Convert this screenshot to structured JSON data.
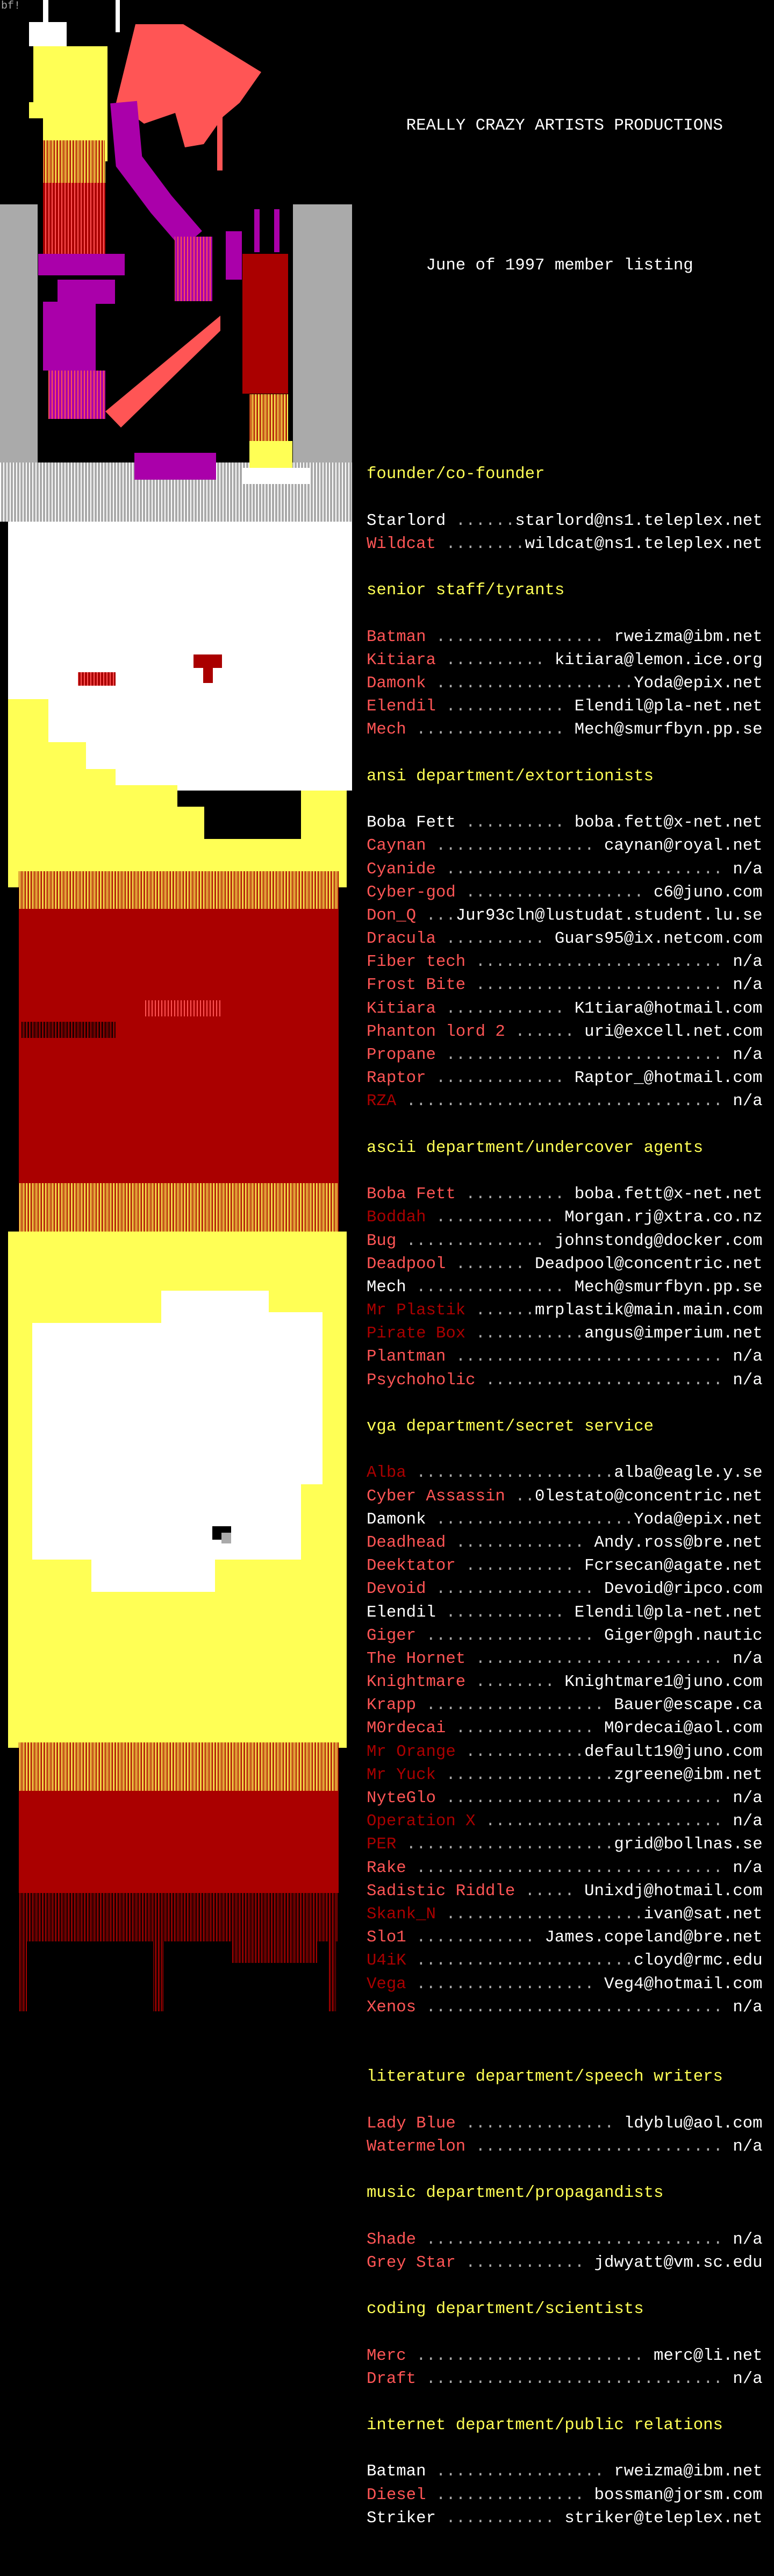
{
  "signature": "bf!",
  "header": {
    "title": "REALLY CRAZY ARTISTS PRODUCTIONS",
    "subtitle": "June of 1997 member listing"
  },
  "colors": {
    "heading": "#ffff55",
    "bright_red": "#ff5555",
    "dark_red": "#aa0000",
    "white": "#ffffff",
    "leader": "#aaaaaa",
    "yellow": "#ffff55",
    "magenta": "#aa00aa",
    "grey": "#aaaaaa"
  },
  "sections": [
    {
      "title": "founder/co-founder",
      "members": [
        {
          "name": "Starlord",
          "leader": " ...... ",
          "contact": "starlord@ns1.teleplex.net",
          "color": "#ffffff"
        },
        {
          "name": "Wildcat",
          "leader": " ........ ",
          "contact": "wildcat@ns1.teleplex.net",
          "color": "#ff5555"
        }
      ]
    },
    {
      "title": "senior staff/tyrants",
      "members": [
        {
          "name": "Batman",
          "leader": " ................. ",
          "contact": "rweizma@ibm.net",
          "color": "#ff5555"
        },
        {
          "name": "Kitiara",
          "leader": " .......... ",
          "contact": "kitiara@lemon.ice.org",
          "color": "#ff5555"
        },
        {
          "name": "Damonk",
          "leader": " .................... ",
          "contact": "Yoda@epix.net",
          "color": "#ff5555"
        },
        {
          "name": "Elendil",
          "leader": " ............ ",
          "contact": "Elendil@pla-net.net",
          "color": "#ff5555"
        },
        {
          "name": "Mech",
          "leader": " ............... ",
          "contact": "Mech@smurfbyn.pp.se",
          "color": "#ff5555"
        }
      ]
    },
    {
      "title": "ansi department/extortionists",
      "members": [
        {
          "name": "Boba Fett",
          "leader": " .......... ",
          "contact": "boba.fett@x-net.net",
          "color": "#ffffff"
        },
        {
          "name": "Caynan",
          "leader": " ................ ",
          "contact": "caynan@royal.net",
          "color": "#ff5555"
        },
        {
          "name": "Cyanide",
          "leader": " ............................ ",
          "contact": "n/a",
          "color": "#ff5555"
        },
        {
          "name": "Cyber-god",
          "leader": " .................. ",
          "contact": "c6@juno.com",
          "color": "#ff5555"
        },
        {
          "name": "Don_Q",
          "leader": " ... ",
          "contact": "Jur93cln@lustudat.student.lu.se",
          "color": "#ff5555"
        },
        {
          "name": "Dracula",
          "leader": " .......... ",
          "contact": "Guars95@ix.netcom.com",
          "color": "#ff5555"
        },
        {
          "name": "Fiber tech",
          "leader": " ......................... ",
          "contact": "n/a",
          "color": "#ff5555"
        },
        {
          "name": "Frost Bite",
          "leader": " ......................... ",
          "contact": "n/a",
          "color": "#ff5555"
        },
        {
          "name": "Kitiara",
          "leader": " ............ ",
          "contact": "K1tiara@hotmail.com",
          "color": "#ff5555"
        },
        {
          "name": "Phanton lord 2",
          "leader": " ...... ",
          "contact": "uri@excell.net.com",
          "color": "#ff5555"
        },
        {
          "name": "Propane",
          "leader": " ............................ ",
          "contact": "n/a",
          "color": "#ff5555"
        },
        {
          "name": "Raptor",
          "leader": " ............. ",
          "contact": "Raptor_@hotmail.com",
          "color": "#ff5555"
        },
        {
          "name": "RZA",
          "leader": " ................................ ",
          "contact": "n/a",
          "color": "#aa0000"
        }
      ]
    },
    {
      "title": "ascii department/undercover agents",
      "members": [
        {
          "name": "Boba Fett",
          "leader": " .......... ",
          "contact": "boba.fett@x-net.net",
          "color": "#ff5555"
        },
        {
          "name": "Boddah",
          "leader": " ............ ",
          "contact": "Morgan.rj@xtra.co.nz",
          "color": "#aa0000"
        },
        {
          "name": "Bug",
          "leader": " .............. ",
          "contact": "johnstondg@docker.com",
          "color": "#ff5555"
        },
        {
          "name": "Deadpool",
          "leader": " ....... ",
          "contact": "Deadpool@concentric.net",
          "color": "#ff5555"
        },
        {
          "name": "Mech",
          "leader": " ............... ",
          "contact": "Mech@smurfbyn.pp.se",
          "color": "#ffffff"
        },
        {
          "name": "Mr Plastik",
          "leader": " ......",
          "contact": "mrplastik@main.main.com",
          "color": "#aa0000"
        },
        {
          "name": "Pirate Box",
          "leader": " ...........",
          "contact": "angus@imperium.net",
          "color": "#aa0000"
        },
        {
          "name": "Plantman",
          "leader": " ........................... ",
          "contact": "n/a",
          "color": "#ff5555"
        },
        {
          "name": "Psychoholic",
          "leader": " ........................ ",
          "contact": "n/a",
          "color": "#ff5555"
        }
      ]
    },
    {
      "title": "vga department/secret service",
      "members": [
        {
          "name": "Alba",
          "leader": " ....................",
          "contact": "alba@eagle.y.se",
          "color": "#aa0000"
        },
        {
          "name": "Cyber Assassin",
          "leader": " .. ",
          "contact": "0lestato@concentric.net",
          "color": "#ff5555"
        },
        {
          "name": "Damonk",
          "leader": " .................... ",
          "contact": "Yoda@epix.net",
          "color": "#ffffff"
        },
        {
          "name": "Deadhead",
          "leader": " ............. ",
          "contact": "Andy.ross@bre.net",
          "color": "#ff5555"
        },
        {
          "name": "Deektator",
          "leader": " ........... ",
          "contact": "Fcrsecan@agate.net",
          "color": "#ff5555"
        },
        {
          "name": "Devoid",
          "leader": " ................ ",
          "contact": "Devoid@ripco.com",
          "color": "#ff5555"
        },
        {
          "name": "Elendil",
          "leader": " ............ ",
          "contact": "Elendil@pla-net.net",
          "color": "#ffffff"
        },
        {
          "name": "Giger",
          "leader": " ................. ",
          "contact": "Giger@pgh.nautic",
          "color": "#ff5555"
        },
        {
          "name": "The Hornet",
          "leader": " ......................... ",
          "contact": "n/a",
          "color": "#ff5555"
        },
        {
          "name": "Knightmare",
          "leader": " ........ ",
          "contact": "Knightmare1@juno.com",
          "color": "#ff5555"
        },
        {
          "name": "Krapp",
          "leader": " .................. ",
          "contact": "Bauer@escape.ca",
          "color": "#ff5555"
        },
        {
          "name": "M0rdecai",
          "leader": " .............. ",
          "contact": "M0rdecai@aol.com",
          "color": "#ff5555"
        },
        {
          "name": "Mr Orange",
          "leader": " ............",
          "contact": "default19@juno.com",
          "color": "#aa0000"
        },
        {
          "name": "Mr Yuck",
          "leader": " .................",
          "contact": "zgreene@ibm.net",
          "color": "#aa0000"
        },
        {
          "name": "NyteGlo",
          "leader": " ............................ ",
          "contact": "n/a",
          "color": "#ff5555"
        },
        {
          "name": "Operation X",
          "leader": " ........................ ",
          "contact": "n/a",
          "color": "#aa0000"
        },
        {
          "name": "PER",
          "leader": " .....................",
          "contact": "grid@bollnas.se",
          "color": "#aa0000"
        },
        {
          "name": "Rake",
          "leader": " ............................... ",
          "contact": "n/a",
          "color": "#ff5555"
        },
        {
          "name": "Sadistic Riddle",
          "leader": " ..... ",
          "contact": "Unixdj@hotmail.com",
          "color": "#ff5555"
        },
        {
          "name": "Skank_N",
          "leader": " ....................",
          "contact": "ivan@sat.net",
          "color": "#aa0000"
        },
        {
          "name": "Slo1",
          "leader": " ............ ",
          "contact": "James.copeland@bre.net",
          "color": "#ff5555"
        },
        {
          "name": "U4iK",
          "leader": " ......................",
          "contact": "cloyd@rmc.edu",
          "color": "#aa0000"
        },
        {
          "name": "Vega",
          "leader": " .................. ",
          "contact": "Veg4@hotmail.com",
          "color": "#aa0000"
        },
        {
          "name": "Xenos",
          "leader": " .............................. ",
          "contact": "n/a",
          "color": "#ff5555"
        }
      ]
    },
    {
      "title": "literature department/speech writers",
      "members": [
        {
          "name": "Lady Blue",
          "leader": " ............... ",
          "contact": "ldyblu@aol.com",
          "color": "#ff5555"
        },
        {
          "name": "Watermelon",
          "leader": " ......................... ",
          "contact": "n/a",
          "color": "#ff5555"
        }
      ]
    },
    {
      "title": "music department/propagandists",
      "members": [
        {
          "name": "Shade",
          "leader": " .............................. ",
          "contact": "n/a",
          "color": "#ff5555"
        },
        {
          "name": "Grey Star",
          "leader": " ............ ",
          "contact": "jdwyatt@vm.sc.edu",
          "color": "#ff5555"
        }
      ]
    },
    {
      "title": "coding department/scientists",
      "members": [
        {
          "name": "Merc",
          "leader": " ....................... ",
          "contact": "merc@li.net",
          "color": "#ff5555"
        },
        {
          "name": "Draft",
          "leader": " .............................. ",
          "contact": "n/a",
          "color": "#ff5555"
        }
      ]
    },
    {
      "title": "internet department/public relations",
      "members": [
        {
          "name": "Batman",
          "leader": " ................. ",
          "contact": "rweizma@ibm.net",
          "color": "#ffffff"
        },
        {
          "name": "Diesel",
          "leader": " ............... ",
          "contact": "bossman@jorsm.com",
          "color": "#ff5555"
        },
        {
          "name": "Striker",
          "leader": " ........... ",
          "contact": "striker@teleplex.net",
          "color": "#ffffff"
        }
      ]
    }
  ]
}
